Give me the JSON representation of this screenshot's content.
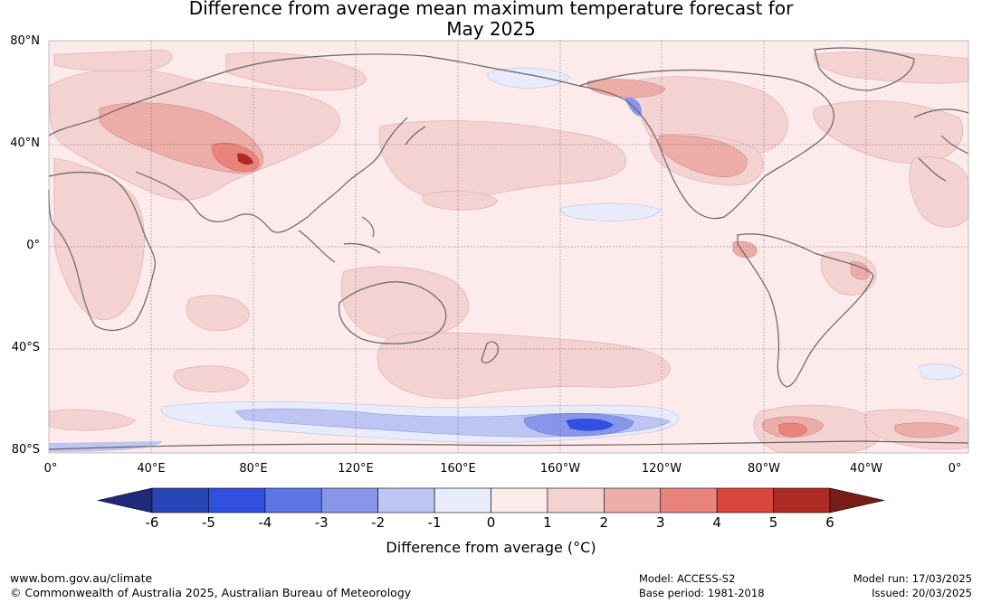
{
  "title_line1": "Difference from average mean maximum temperature forecast for",
  "title_line2": "May 2025",
  "lat_labels": [
    "80°N",
    "40°N",
    "0°",
    "40°S",
    "80°S"
  ],
  "lon_labels": [
    "0°",
    "40°E",
    "80°E",
    "120°E",
    "160°E",
    "160°W",
    "120°W",
    "80°W",
    "40°W",
    "0°"
  ],
  "colorbar": {
    "ticks": [
      "-6",
      "-5",
      "-4",
      "-3",
      "-2",
      "-1",
      "0",
      "1",
      "2",
      "3",
      "4",
      "5",
      "6"
    ],
    "colors": [
      "#1f2a7a",
      "#2a45b8",
      "#3250e0",
      "#5b74e6",
      "#8896ea",
      "#bec5f2",
      "#e8ebfa",
      "#fcebea",
      "#f4d2d2",
      "#ecaca8",
      "#e8847c",
      "#da463c",
      "#ad2b24",
      "#7a1c18"
    ],
    "label": "Difference from average (°C)"
  },
  "footer": {
    "url": "www.bom.gov.au/climate",
    "copyright": "© Commonwealth of Australia 2025, Australian Bureau of Meteorology",
    "model": "Model: ACCESS-S2",
    "base_period": "Base period: 1981-2018",
    "model_run": "Model run: 17/03/2025",
    "issued": "Issued: 20/03/2025"
  }
}
